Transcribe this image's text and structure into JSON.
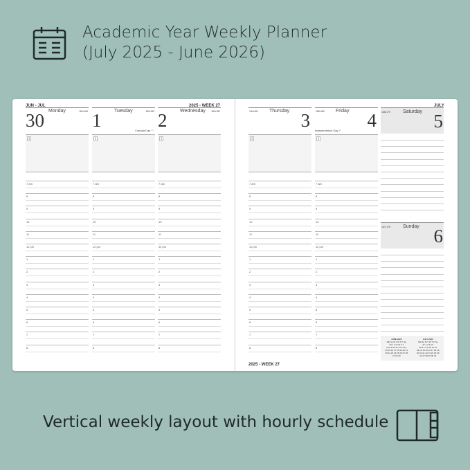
{
  "headline": {
    "line1": "Academic Year Weekly Planner",
    "line2": "(July 2025 - June 2026)"
  },
  "caption": "Vertical weekly layout with hourly schedule",
  "icons": {
    "top": "calendar-icon",
    "bottom": "open-planner-icon"
  },
  "colors": {
    "background": "#a0bfb8",
    "weekend_header": "#e9e9e9"
  },
  "planner": {
    "left_header": "JUN - JUL",
    "left_header_right": "2025 - WEEK 27",
    "right_header": "JULY",
    "footer": "2025 - WEEK 27",
    "info_label": "i",
    "days": [
      {
        "name": "Monday",
        "num": "30",
        "doy": "181•184",
        "holiday": ""
      },
      {
        "name": "Tuesday",
        "num": "1",
        "doy": "182•183",
        "holiday": "Canada Day ⚐"
      },
      {
        "name": "Wednesday",
        "num": "2",
        "doy": "183•182",
        "holiday": ""
      },
      {
        "name": "Thursday",
        "num": "3",
        "doy": "184•181",
        "holiday": ""
      },
      {
        "name": "Friday",
        "num": "4",
        "doy": "185•180",
        "holiday": "Independence Day ⚐"
      },
      {
        "name": "Saturday",
        "num": "5",
        "doy": "186•179",
        "holiday": ""
      },
      {
        "name": "Sunday",
        "num": "6",
        "doy": "187•178",
        "holiday": ""
      }
    ],
    "hours": [
      "7 am",
      "8",
      "9",
      "10",
      "11",
      "12 pm",
      "1",
      "2",
      "3",
      "4",
      "5",
      "6",
      "7",
      "8"
    ],
    "mini_calendars": [
      {
        "title": "JUNE 2025",
        "rows": [
          "Wk Su M T W T F Sa",
          "23 1 2 3 4 5 6 7",
          "24 8 9 10 11 12 13 14",
          "25 15 16 17 18 19 20 21",
          "26 22 23 24 25 26 27 28",
          "27 29 30"
        ]
      },
      {
        "title": "JULY 2025",
        "rows": [
          "Wk Su M T W T F Sa",
          "27 1 2 3 4 5",
          "28 6 7 8 9 10 11 12",
          "29 13 14 15 16 17 18 19",
          "30 20 21 22 23 24 25 26",
          "31 27 28 29 30 31"
        ]
      }
    ]
  }
}
